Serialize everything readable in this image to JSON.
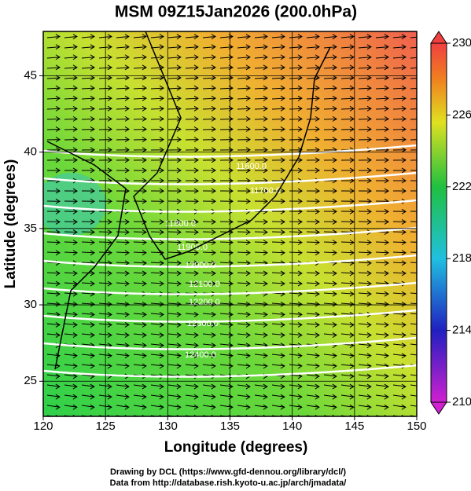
{
  "chart_data": {
    "type": "map",
    "title": "MSM 09Z15Jan2026 (200.0hPa)",
    "xlabel": "Longitude (degrees)",
    "ylabel": "Latitude  (degrees)",
    "xlim": [
      120,
      150
    ],
    "xticks": [
      120,
      125,
      130,
      135,
      140,
      145,
      150
    ],
    "ylim": [
      22.7,
      47.9
    ],
    "yticks": [
      25,
      30,
      35,
      40,
      45
    ],
    "grid": true,
    "colorbar": {
      "lim": [
        210,
        230
      ],
      "ticks": [
        210,
        214,
        218,
        222,
        226,
        230
      ]
    },
    "contour_labels": [
      "11600.0",
      "11700.0",
      "11800.0",
      "11900.0",
      "12000.0",
      "12100.0",
      "12200.0",
      "12300.0",
      "12400.0"
    ]
  },
  "footer": [
    "Drawing by DCL (https://www.gfd-dennou.org/library/dcl/)",
    "Data from http://database.rish.kyoto-u.ac.jp/arch/jmadata/"
  ]
}
